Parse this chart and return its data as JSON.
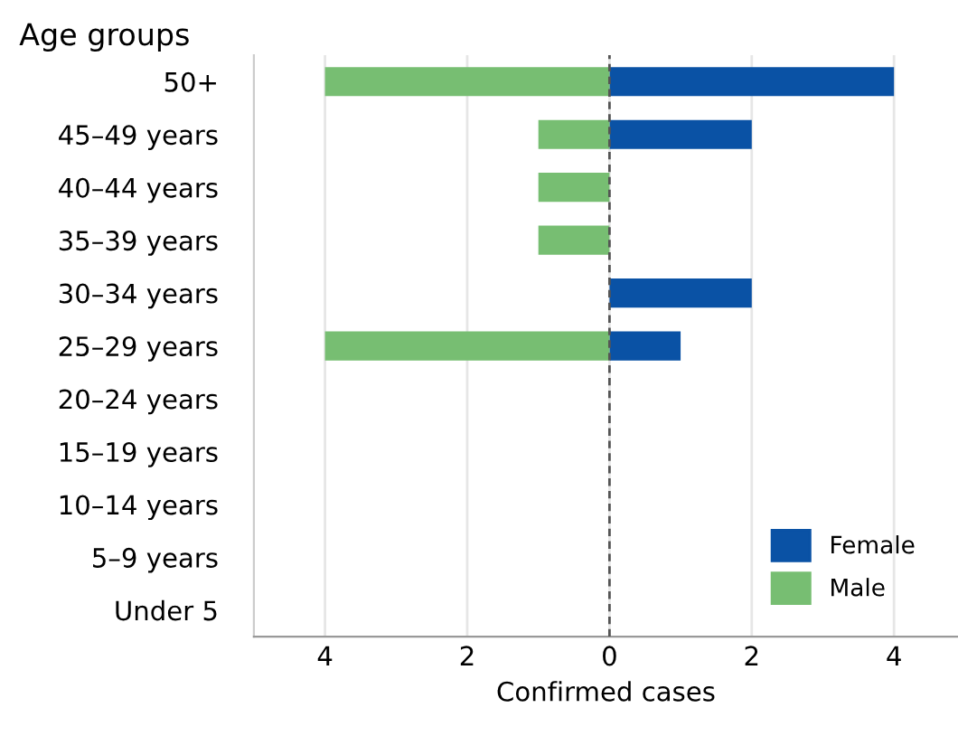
{
  "chart_data": {
    "type": "bar",
    "orientation": "horizontal",
    "ylabel": "Age groups",
    "xlabel": "Confirmed cases",
    "categories": [
      "50+",
      "45–49 years",
      "40–44 years",
      "35–39 years",
      "30–34 years",
      "25–29 years",
      "20–24 years",
      "15–19 years",
      "10–14 years",
      "5–9 years",
      "Under 5"
    ],
    "series": [
      {
        "name": "Female",
        "color": "#0a52a5",
        "values": [
          4,
          2,
          0,
          0,
          2,
          1,
          0,
          0,
          0,
          0,
          0
        ]
      },
      {
        "name": "Male",
        "color": "#77be72",
        "values": [
          -4,
          -1,
          -1,
          -1,
          0,
          -4,
          0,
          0,
          0,
          0,
          0
        ]
      }
    ],
    "xlim": [
      -5,
      4.9
    ],
    "xticks": [
      {
        "value": -4,
        "label": "4"
      },
      {
        "value": -2,
        "label": "2"
      },
      0,
      2,
      4
    ],
    "ref_lines": [
      {
        "axis": "x",
        "value": 0,
        "color": "#555555",
        "line_style": "dashed"
      }
    ],
    "grid": "x",
    "legend": "bottom right"
  }
}
